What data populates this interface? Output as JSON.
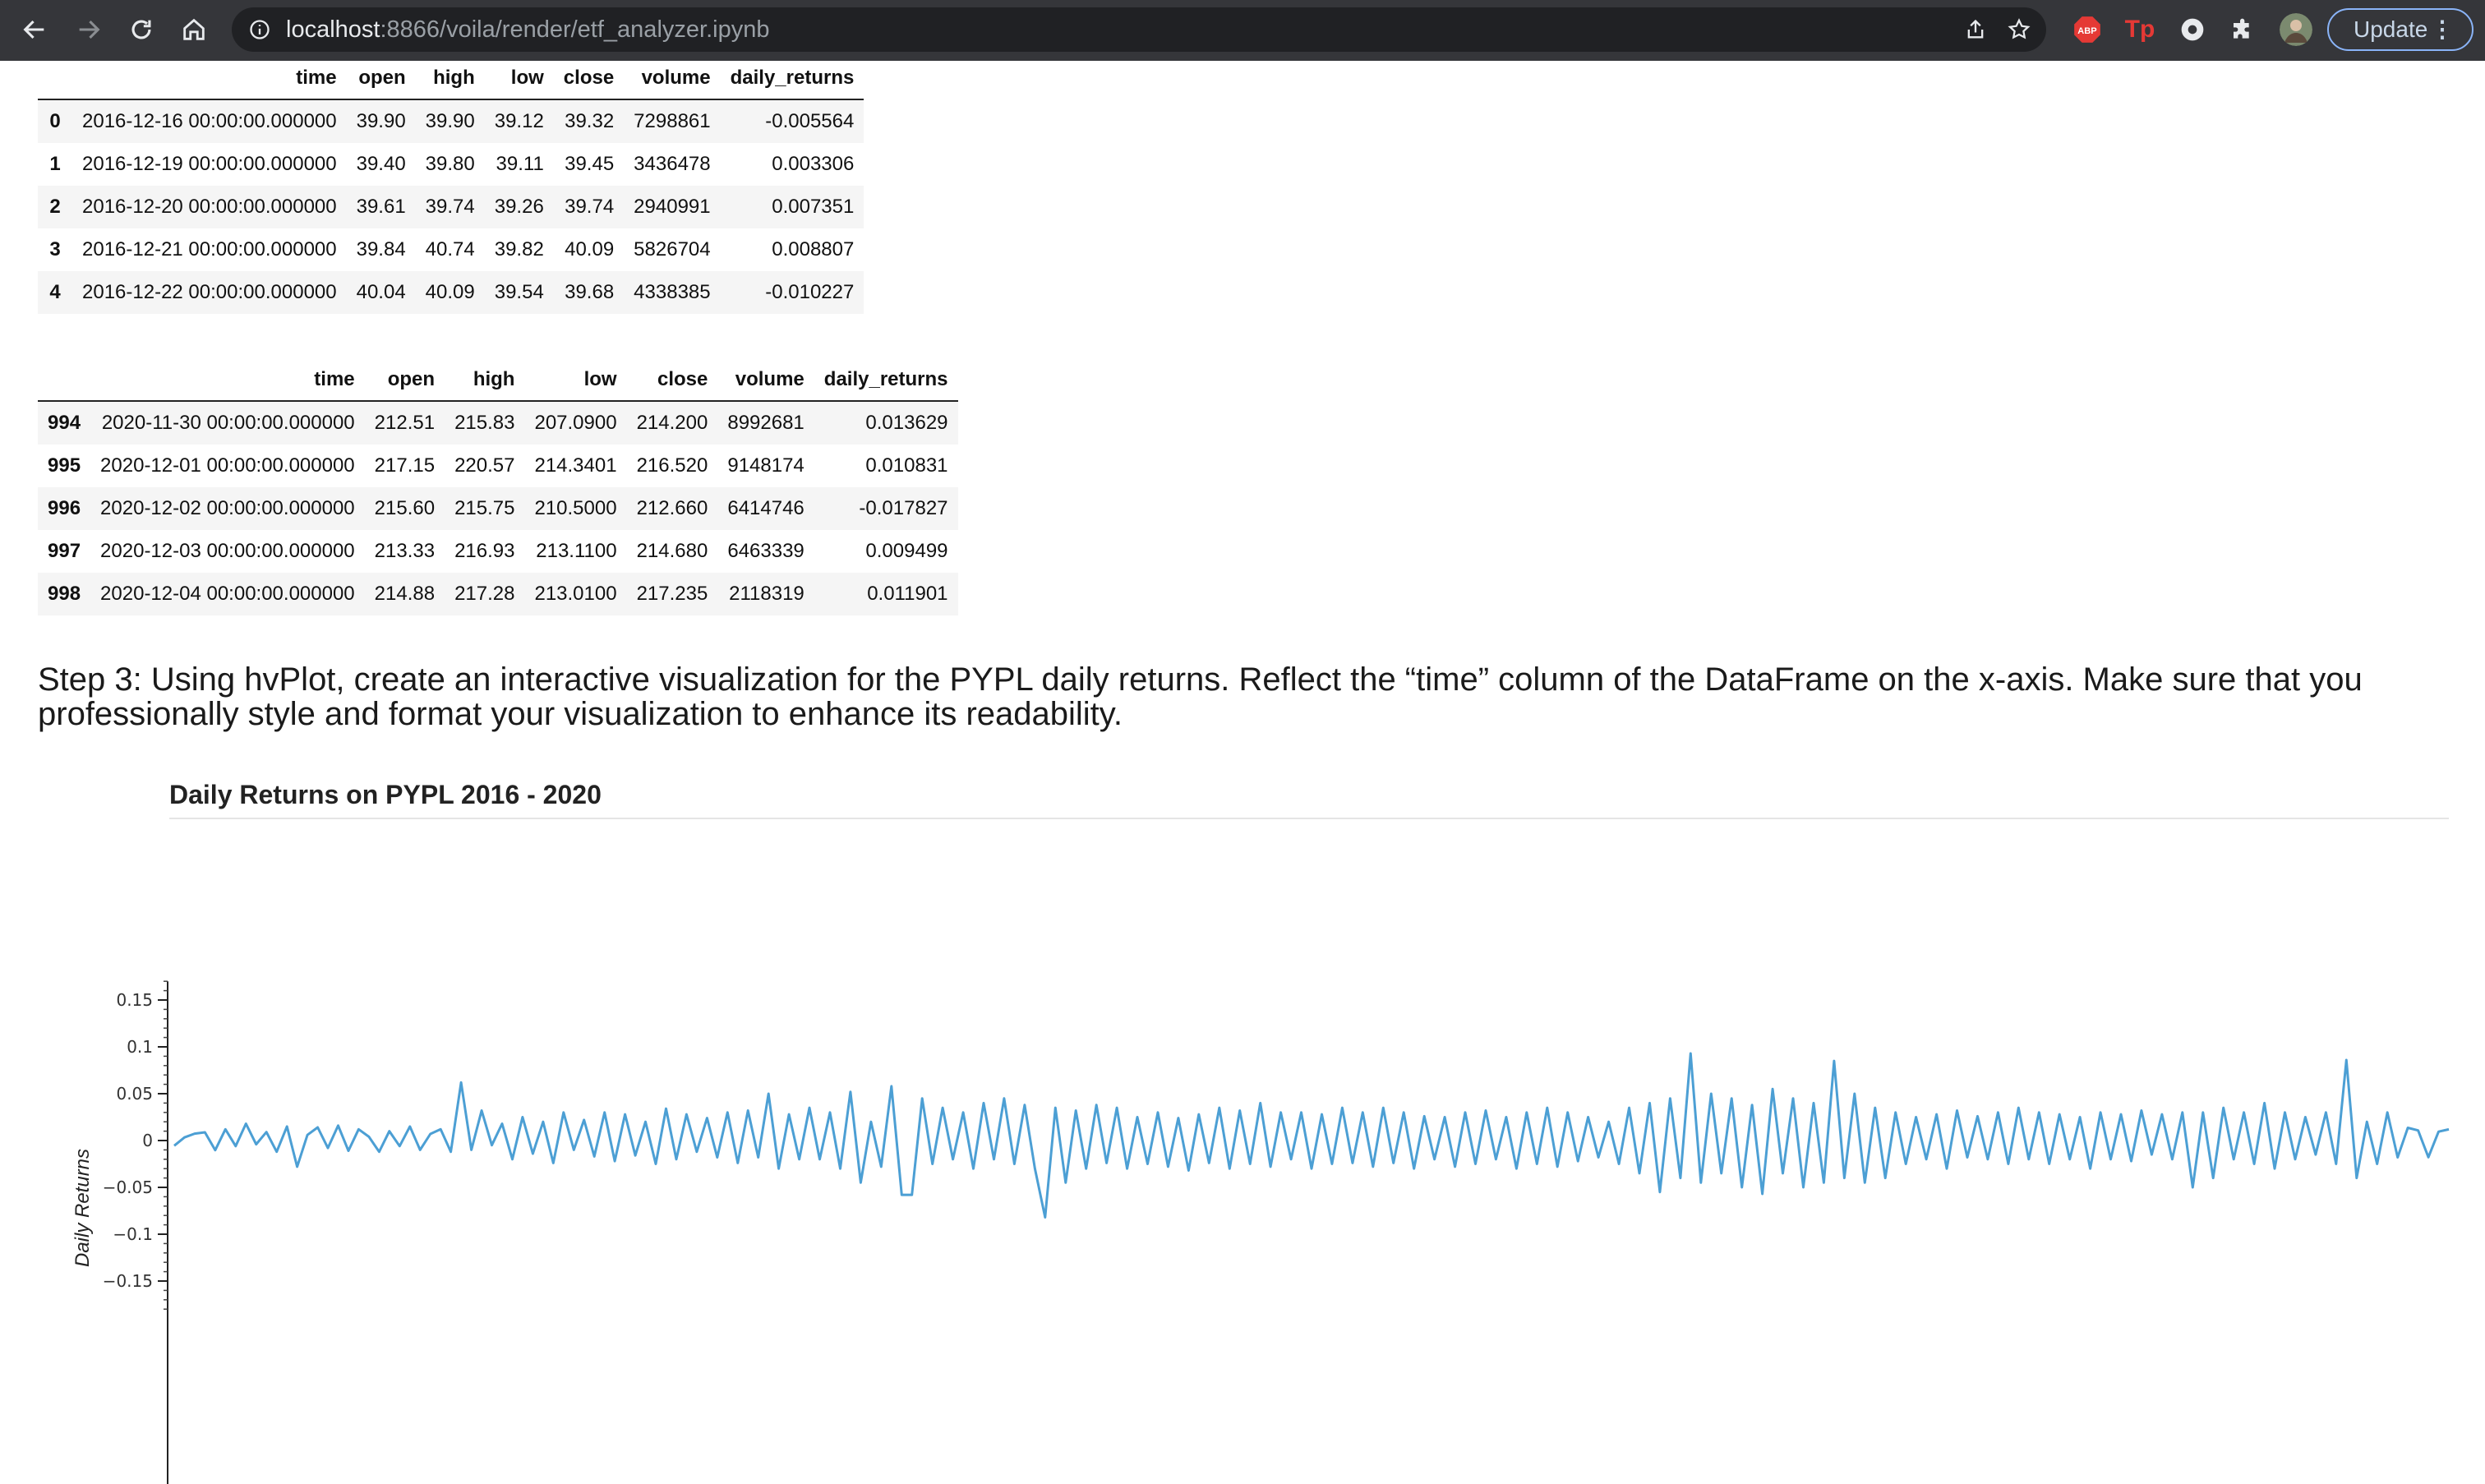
{
  "browser": {
    "url_host": "localhost",
    "url_rest": ":8866/voila/render/etf_analyzer.ipynb",
    "update_label": "Update",
    "update_more": "⋮",
    "extensions": [
      "share-icon",
      "star-icon",
      "adblock-plus-icon",
      "tp-icon",
      "circle-extension-icon",
      "puzzle-icon",
      "profile-avatar"
    ],
    "abp_text": "ABP",
    "tp_text": "Tp"
  },
  "table_head": {
    "columns": [
      "",
      "time",
      "open",
      "high",
      "low",
      "close",
      "volume",
      "daily_returns"
    ],
    "rows": [
      [
        "0",
        "2016-12-16 00:00:00.000000",
        "39.90",
        "39.90",
        "39.12",
        "39.32",
        "7298861",
        "-0.005564"
      ],
      [
        "1",
        "2016-12-19 00:00:00.000000",
        "39.40",
        "39.80",
        "39.11",
        "39.45",
        "3436478",
        "0.003306"
      ],
      [
        "2",
        "2016-12-20 00:00:00.000000",
        "39.61",
        "39.74",
        "39.26",
        "39.74",
        "2940991",
        "0.007351"
      ],
      [
        "3",
        "2016-12-21 00:00:00.000000",
        "39.84",
        "40.74",
        "39.82",
        "40.09",
        "5826704",
        "0.008807"
      ],
      [
        "4",
        "2016-12-22 00:00:00.000000",
        "40.04",
        "40.09",
        "39.54",
        "39.68",
        "4338385",
        "-0.010227"
      ]
    ]
  },
  "table_tail": {
    "columns": [
      "",
      "time",
      "open",
      "high",
      "low",
      "close",
      "volume",
      "daily_returns"
    ],
    "rows": [
      [
        "994",
        "2020-11-30 00:00:00.000000",
        "212.51",
        "215.83",
        "207.0900",
        "214.200",
        "8992681",
        "0.013629"
      ],
      [
        "995",
        "2020-12-01 00:00:00.000000",
        "217.15",
        "220.57",
        "214.3401",
        "216.520",
        "9148174",
        "0.010831"
      ],
      [
        "996",
        "2020-12-02 00:00:00.000000",
        "215.60",
        "215.75",
        "210.5000",
        "212.660",
        "6414746",
        "-0.017827"
      ],
      [
        "997",
        "2020-12-03 00:00:00.000000",
        "213.33",
        "216.93",
        "213.1100",
        "214.680",
        "6463339",
        "0.009499"
      ],
      [
        "998",
        "2020-12-04 00:00:00.000000",
        "214.88",
        "217.28",
        "213.0100",
        "217.235",
        "2118319",
        "0.011901"
      ]
    ]
  },
  "step3": {
    "heading": "Step 3: Using hvPlot, create an interactive visualization for the PYPL daily returns. Reflect the “time” column of the DataFrame on the x-axis. Make sure that you professionally style and format your visualization to enhance its readability."
  },
  "chart_data": {
    "type": "line",
    "title": "Daily Returns on PYPL 2016 - 2020",
    "xlabel": "",
    "ylabel": "Daily Returns",
    "ylim": [
      -0.18,
      0.17
    ],
    "y_ticks": [
      0.15,
      0.1,
      0.05,
      0,
      -0.05,
      -0.1,
      -0.15
    ],
    "y_tick_labels": [
      "0.15",
      "0.1",
      "0.05",
      "0",
      "−0.05",
      "−0.1",
      "−0.15"
    ],
    "grid": false,
    "color": "#4c9fd4",
    "series": [
      {
        "x_start": "2016-12-16",
        "x_end": "2020-12-04",
        "points": 999,
        "sampled_values": [
          -0.005564,
          0.003306,
          0.007351,
          0.008807,
          -0.010227,
          0.012,
          -0.006,
          0.018,
          -0.004,
          0.009,
          -0.012,
          0.015,
          -0.028,
          0.006,
          0.014,
          -0.008,
          0.016,
          -0.011,
          0.012,
          0.004,
          -0.012,
          0.01,
          -0.006,
          0.015,
          -0.01,
          0.007,
          0.012,
          -0.012,
          0.062,
          -0.01,
          0.032,
          -0.005,
          0.018,
          -0.02,
          0.025,
          -0.014,
          0.02,
          -0.024,
          0.03,
          -0.01,
          0.022,
          -0.017,
          0.03,
          -0.022,
          0.028,
          -0.016,
          0.02,
          -0.025,
          0.034,
          -0.02,
          0.028,
          -0.012,
          0.024,
          -0.018,
          0.03,
          -0.024,
          0.032,
          -0.018,
          0.05,
          -0.03,
          0.028,
          -0.02,
          0.035,
          -0.02,
          0.03,
          -0.03,
          0.052,
          -0.045,
          0.02,
          -0.028,
          0.058,
          -0.058,
          -0.058,
          0.045,
          -0.025,
          0.035,
          -0.02,
          0.03,
          -0.03,
          0.04,
          -0.02,
          0.045,
          -0.025,
          0.038,
          -0.03,
          -0.082,
          0.035,
          -0.045,
          0.032,
          -0.03,
          0.038,
          -0.024,
          0.035,
          -0.03,
          0.025,
          -0.025,
          0.03,
          -0.028,
          0.024,
          -0.032,
          0.028,
          -0.024,
          0.035,
          -0.03,
          0.032,
          -0.025,
          0.04,
          -0.028,
          0.03,
          -0.02,
          0.03,
          -0.03,
          0.028,
          -0.025,
          0.035,
          -0.024,
          0.03,
          -0.028,
          0.035,
          -0.024,
          0.03,
          -0.03,
          0.026,
          -0.02,
          0.025,
          -0.028,
          0.03,
          -0.025,
          0.032,
          -0.02,
          0.025,
          -0.03,
          0.03,
          -0.025,
          0.035,
          -0.028,
          0.03,
          -0.022,
          0.025,
          -0.018,
          0.02,
          -0.025,
          0.035,
          -0.035,
          0.04,
          -0.055,
          0.045,
          -0.04,
          0.093,
          -0.045,
          0.05,
          -0.035,
          0.045,
          -0.05,
          0.038,
          -0.057,
          0.055,
          -0.035,
          0.045,
          -0.05,
          0.04,
          -0.045,
          0.085,
          -0.04,
          0.05,
          -0.045,
          0.035,
          -0.04,
          0.03,
          -0.025,
          0.025,
          -0.02,
          0.028,
          -0.03,
          0.032,
          -0.018,
          0.026,
          -0.02,
          0.03,
          -0.025,
          0.035,
          -0.02,
          0.03,
          -0.025,
          0.028,
          -0.02,
          0.025,
          -0.03,
          0.03,
          -0.02,
          0.028,
          -0.022,
          0.032,
          -0.015,
          0.028,
          -0.02,
          0.03,
          -0.05,
          0.03,
          -0.04,
          0.035,
          -0.02,
          0.03,
          -0.025,
          0.04,
          -0.03,
          0.03,
          -0.02,
          0.025,
          -0.015,
          0.03,
          -0.025,
          0.086,
          -0.04,
          0.02,
          -0.025,
          0.03,
          -0.018,
          0.013629,
          0.010831,
          -0.017827,
          0.009499,
          0.011901
        ]
      }
    ]
  }
}
